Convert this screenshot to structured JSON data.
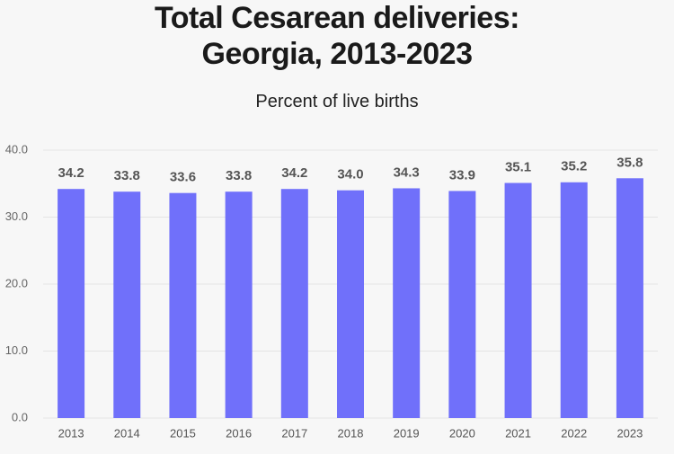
{
  "chart_data": {
    "type": "bar",
    "title": "Total Cesarean deliveries: Georgia, 2013-2023",
    "subtitle": "Percent of live births",
    "categories": [
      "2013",
      "2014",
      "2015",
      "2016",
      "2017",
      "2018",
      "2019",
      "2020",
      "2021",
      "2022",
      "2023"
    ],
    "values": [
      34.2,
      33.8,
      33.6,
      33.8,
      34.2,
      34.0,
      34.3,
      33.9,
      35.1,
      35.2,
      35.8
    ],
    "value_labels": [
      "34.2",
      "33.8",
      "33.6",
      "33.8",
      "34.2",
      "34.0",
      "34.3",
      "33.9",
      "35.1",
      "35.2",
      "35.8"
    ],
    "color": "#7070fa",
    "ylim": [
      0,
      40
    ],
    "yticks": [
      {
        "value": 0,
        "label": "0.0"
      },
      {
        "value": 10,
        "label": "10.0"
      },
      {
        "value": 20,
        "label": "20.0"
      },
      {
        "value": 30,
        "label": "30.0"
      },
      {
        "value": 40,
        "label": "40.0"
      }
    ],
    "grid": true
  }
}
